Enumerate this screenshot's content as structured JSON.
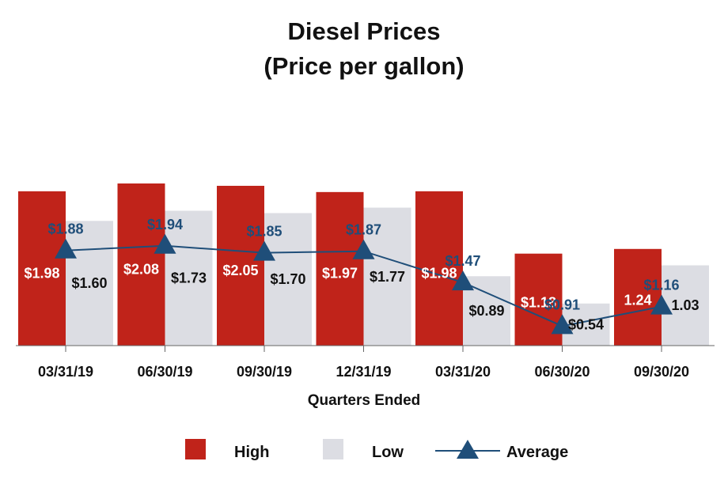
{
  "chart_data": {
    "type": "bar",
    "title": "Diesel Prices",
    "subtitle": "(Price per gallon)",
    "xlabel": "Quarters Ended",
    "ylabel": "",
    "categories": [
      "03/31/19",
      "06/30/19",
      "09/30/19",
      "12/31/19",
      "03/31/20",
      "06/30/20",
      "09/30/20"
    ],
    "series": [
      {
        "name": "High",
        "kind": "bar",
        "color": "#c0231a",
        "values": [
          1.98,
          2.08,
          2.05,
          1.97,
          1.98,
          1.18,
          1.24
        ],
        "labels": [
          "$1.98",
          "$2.08",
          "$2.05",
          "$1.97",
          "$1.98",
          "$1.18",
          "1.24"
        ]
      },
      {
        "name": "Low",
        "kind": "bar",
        "color": "#dcdde3",
        "values": [
          1.6,
          1.73,
          1.7,
          1.77,
          0.89,
          0.54,
          1.03
        ],
        "labels": [
          "$1.60",
          "$1.73",
          "$1.70",
          "$1.77",
          "$0.89",
          "$0.54",
          "1.03"
        ]
      },
      {
        "name": "Average",
        "kind": "line",
        "color": "#1f4e79",
        "marker": "triangle",
        "values": [
          1.88,
          1.94,
          1.85,
          1.87,
          1.47,
          0.91,
          1.16
        ],
        "labels": [
          "$1.88",
          "$1.94",
          "$1.85",
          "$1.87",
          "$1.47",
          "$0.91",
          "$1.16"
        ]
      }
    ],
    "ylim": [
      0,
      2.1
    ],
    "grid": false,
    "legend": "bottom-center"
  }
}
